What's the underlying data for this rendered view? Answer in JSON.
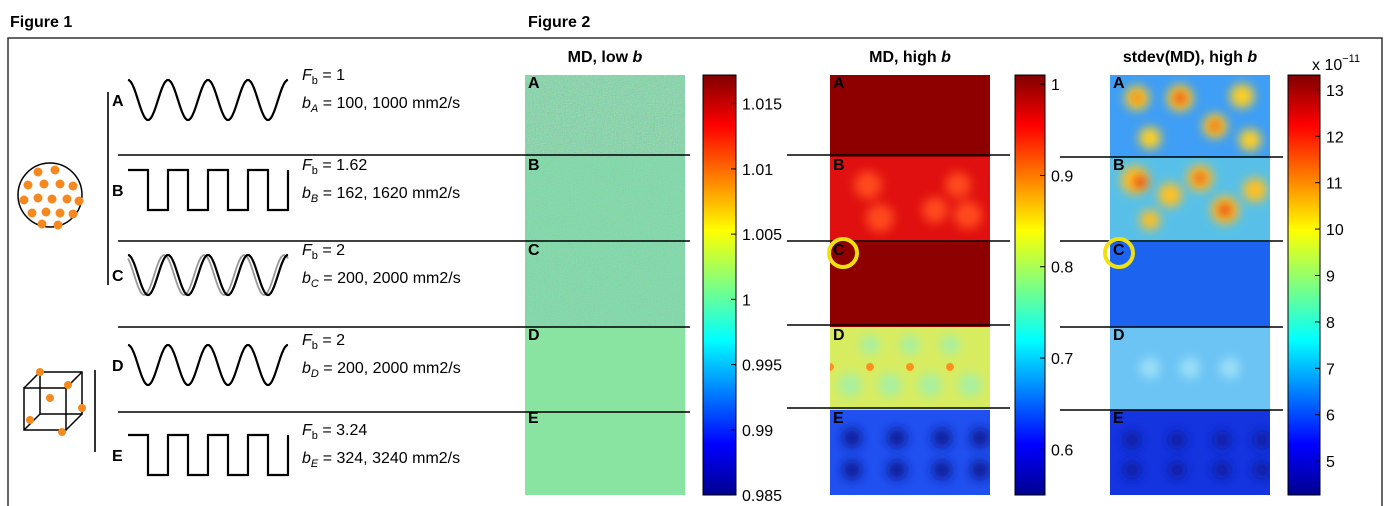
{
  "figure1": {
    "title": "Figure 1",
    "rows": [
      {
        "label": "A",
        "f": {
          "sym": "F",
          "sub": "b",
          "text": " = 1"
        },
        "b": {
          "sym": "b",
          "sub": "A",
          "text": " = 100, 1000 mm2/s"
        }
      },
      {
        "label": "B",
        "f": {
          "sym": "F",
          "sub": "b",
          "text": " = 1.62"
        },
        "b": {
          "sym": "b",
          "sub": "B",
          "text": " = 162, 1620 mm2/s"
        }
      },
      {
        "label": "C",
        "f": {
          "sym": "F",
          "sub": "b",
          "text": " = 2"
        },
        "b": {
          "sym": "b",
          "sub": "C",
          "text": " = 200, 2000 mm2/s"
        }
      },
      {
        "label": "D",
        "f": {
          "sym": "F",
          "sub": "b",
          "text": " = 2"
        },
        "b": {
          "sym": "b",
          "sub": "D",
          "text": " = 200, 2000 mm2/s"
        }
      },
      {
        "label": "E",
        "f": {
          "sym": "F",
          "sub": "b",
          "text": " = 3.24"
        },
        "b": {
          "sym": "b",
          "sub": "E",
          "text": " = 324, 3240 mm2/s"
        }
      }
    ]
  },
  "figure2": {
    "title": "Figure 2",
    "panels": [
      {
        "title": [
          "MD, low ",
          "b"
        ],
        "sections": [
          "A",
          "B",
          "C",
          "D",
          "E"
        ],
        "colorbar": {
          "range": [
            0.985,
            1.0172
          ],
          "ticks": [
            1.015,
            1.01,
            1.005,
            1,
            0.995,
            0.99,
            0.985
          ]
        }
      },
      {
        "title": [
          "MD, high ",
          "b"
        ],
        "sections": [
          "A",
          "B",
          "C",
          "D",
          "E"
        ],
        "colorbar": {
          "range": [
            0.55,
            1.01
          ],
          "ticks": [
            1,
            0.9,
            0.8,
            0.7,
            0.6
          ]
        }
      },
      {
        "title": [
          "stdev(MD), high ",
          "b"
        ],
        "sections": [
          "A",
          "B",
          "C",
          "D",
          "E"
        ],
        "colorbar": {
          "range": [
            4.27,
            13.32
          ],
          "ticks": [
            13,
            12,
            11,
            10,
            9,
            8,
            7,
            6,
            5
          ],
          "scale": {
            "base": "x 10",
            "exp": "−11"
          }
        }
      }
    ]
  }
}
